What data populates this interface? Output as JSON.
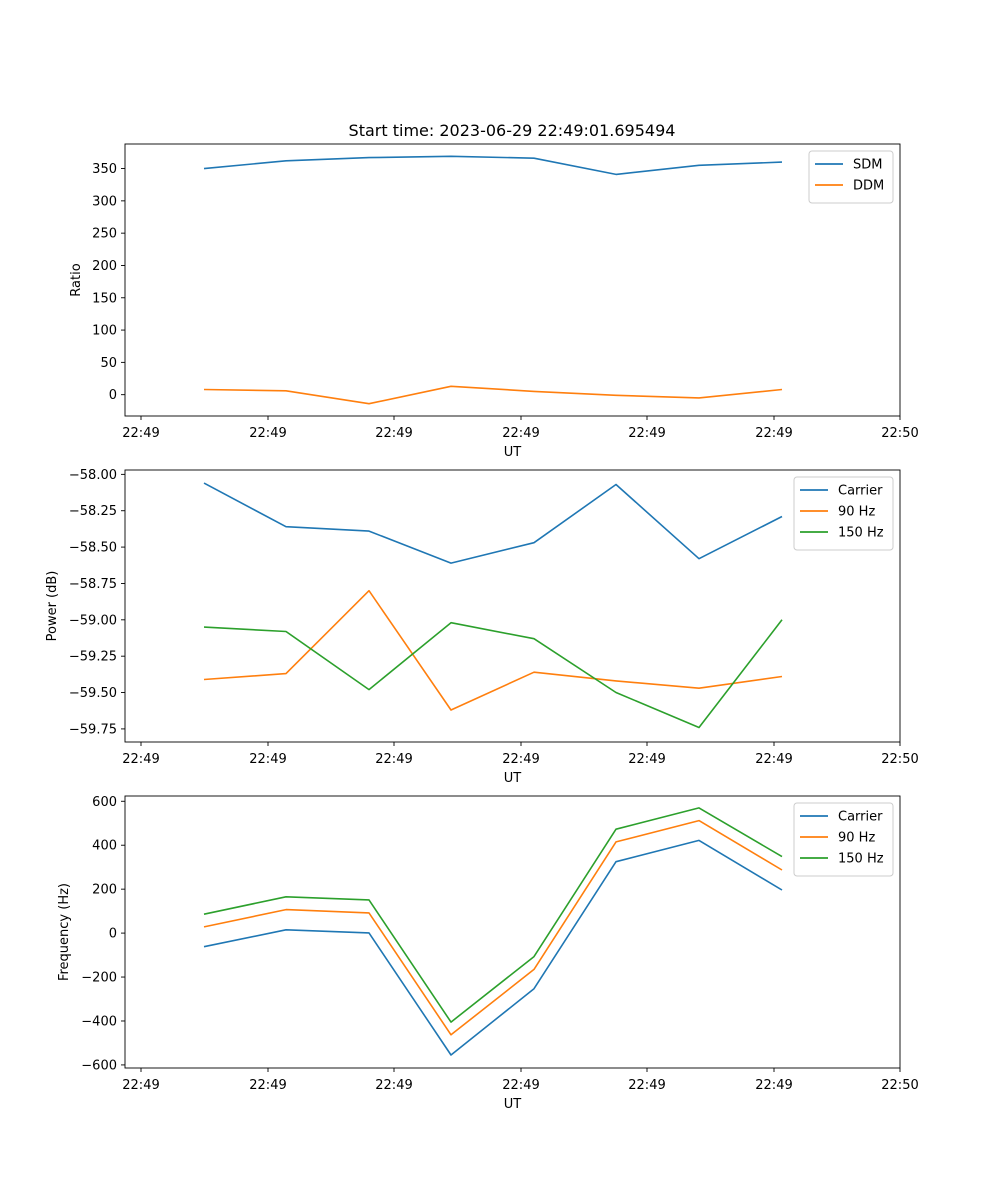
{
  "figure": {
    "title": "Start time: 2023-06-29 22:49:01.695494"
  },
  "chart_data": [
    {
      "type": "line",
      "xlabel": "UT",
      "ylabel": "Ratio",
      "x_tick_labels": [
        "22:49",
        "22:49",
        "22:49",
        "22:49",
        "22:49",
        "22:49",
        "22:49"
      ],
      "x_last_tick_label": "22:50",
      "y_ticks": [
        0,
        50,
        100,
        150,
        200,
        250,
        300,
        350
      ],
      "y_tick_labels": [
        "0",
        "50",
        "100",
        "150",
        "200",
        "250",
        "300",
        "350"
      ],
      "ylim": [
        -33,
        388
      ],
      "grid": false,
      "legend_position": "upper-right",
      "series": [
        {
          "name": "SDM",
          "color": "#1f77b4",
          "values": [
            350,
            362,
            367,
            369,
            366,
            341,
            355,
            360
          ]
        },
        {
          "name": "DDM",
          "color": "#ff7f0e",
          "values": [
            8,
            6,
            -14,
            13,
            5,
            -1,
            -5,
            8
          ]
        }
      ]
    },
    {
      "type": "line",
      "xlabel": "UT",
      "ylabel": "Power (dB)",
      "x_tick_labels": [
        "22:49",
        "22:49",
        "22:49",
        "22:49",
        "22:49",
        "22:49",
        "22:49"
      ],
      "x_last_tick_label": "22:50",
      "y_ticks": [
        -58.0,
        -58.25,
        -58.5,
        -58.75,
        -59.0,
        -59.25,
        -59.5,
        -59.75
      ],
      "y_tick_labels": [
        "−58.00",
        "−58.25",
        "−58.50",
        "−58.75",
        "−59.00",
        "−59.25",
        "−59.50",
        "−59.75"
      ],
      "ylim": [
        -59.84,
        -57.97
      ],
      "grid": false,
      "legend_position": "upper-right",
      "series": [
        {
          "name": "Carrier",
          "color": "#1f77b4",
          "values": [
            -58.06,
            -58.36,
            -58.39,
            -58.61,
            -58.47,
            -58.07,
            -58.58,
            -58.29
          ]
        },
        {
          "name": "90 Hz",
          "color": "#ff7f0e",
          "values": [
            -59.41,
            -59.37,
            -58.8,
            -59.62,
            -59.36,
            -59.42,
            -59.47,
            -59.39
          ]
        },
        {
          "name": "150 Hz",
          "color": "#2ca02c",
          "values": [
            -59.05,
            -59.08,
            -59.48,
            -59.02,
            -59.13,
            -59.5,
            -59.74,
            -59.0
          ]
        }
      ]
    },
    {
      "type": "line",
      "xlabel": "UT",
      "ylabel": "Frequency (Hz)",
      "x_tick_labels": [
        "22:49",
        "22:49",
        "22:49",
        "22:49",
        "22:49",
        "22:49",
        "22:49"
      ],
      "x_last_tick_label": "22:50",
      "y_ticks": [
        600,
        400,
        200,
        0,
        -200,
        -400,
        -600
      ],
      "y_tick_labels": [
        "600",
        "400",
        "200",
        "0",
        "−200",
        "−400",
        "−600"
      ],
      "ylim": [
        -614,
        624
      ],
      "grid": false,
      "legend_position": "upper-right",
      "series": [
        {
          "name": "Carrier",
          "color": "#1f77b4",
          "values": [
            -62,
            15,
            1,
            -555,
            -253,
            325,
            422,
            196
          ]
        },
        {
          "name": "90 Hz",
          "color": "#ff7f0e",
          "values": [
            28,
            107,
            92,
            -463,
            -165,
            415,
            512,
            287
          ]
        },
        {
          "name": "150 Hz",
          "color": "#2ca02c",
          "values": [
            86,
            165,
            151,
            -405,
            -107,
            473,
            570,
            348
          ]
        }
      ]
    }
  ]
}
